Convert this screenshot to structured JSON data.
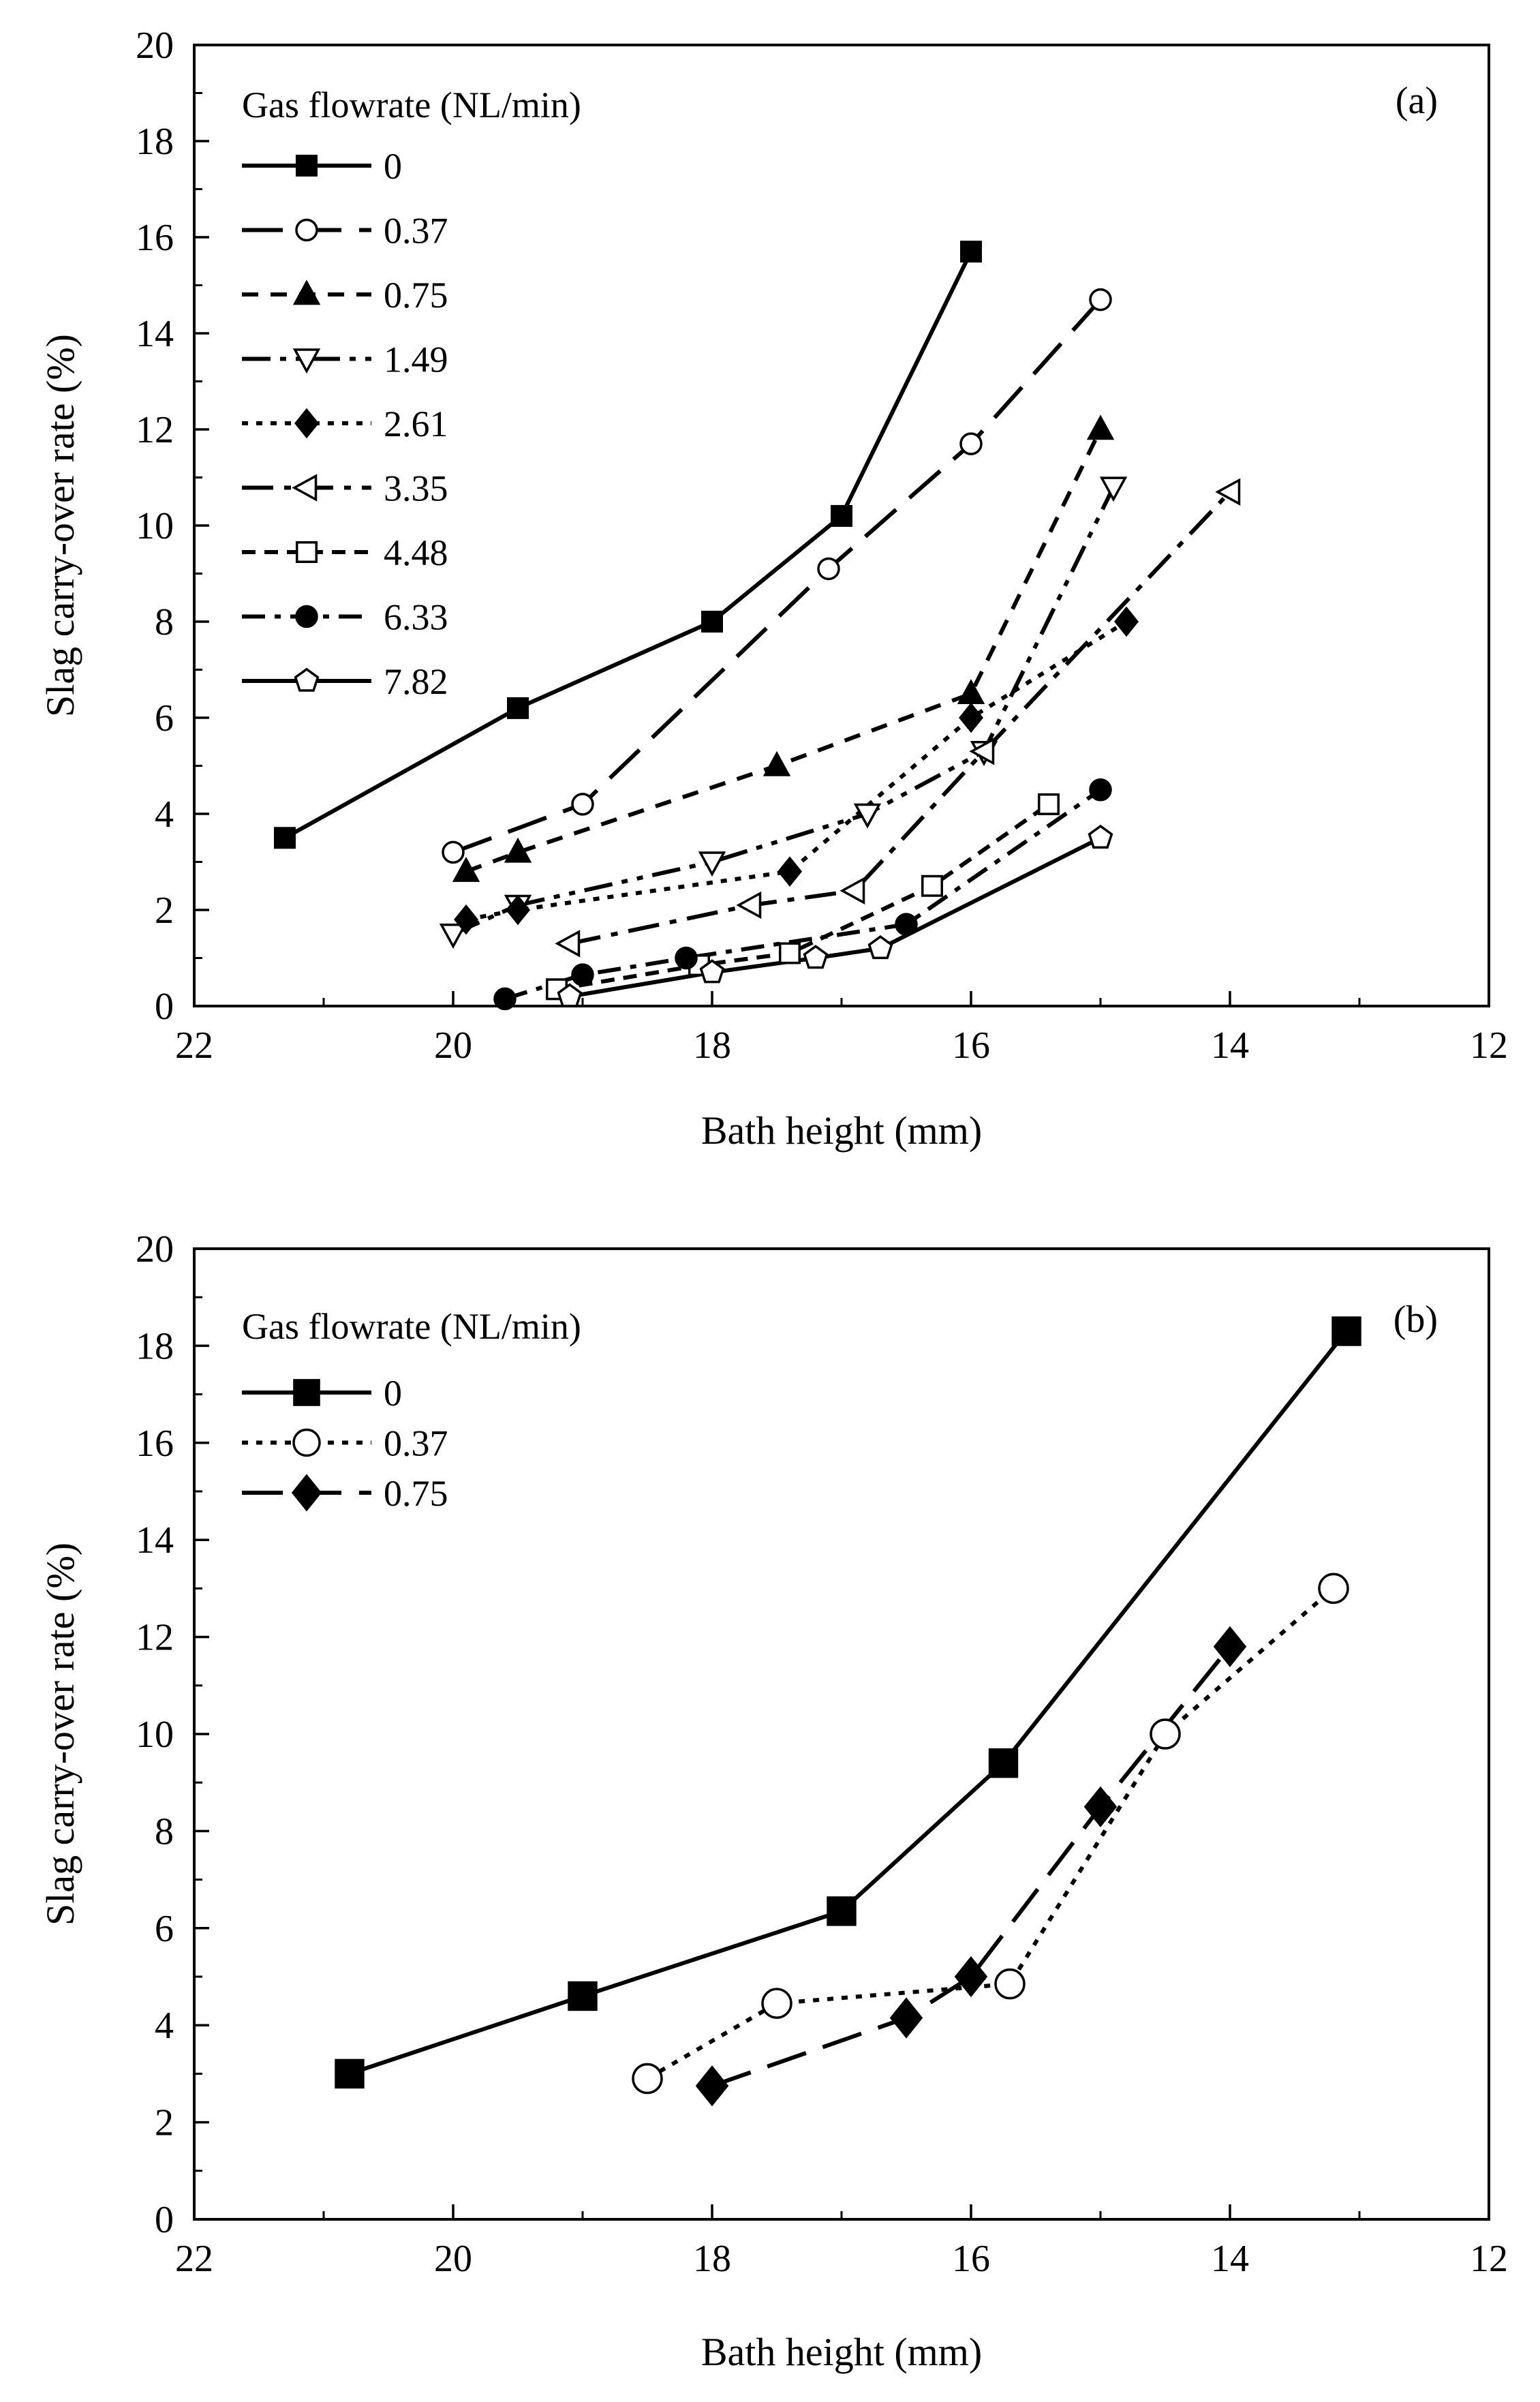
{
  "chart_data": [
    {
      "type": "line",
      "panel_label": "(a)",
      "xlabel": "Bath height (mm)",
      "ylabel": "Slag carry-over rate (%)",
      "xlim": [
        22,
        12
      ],
      "ylim": [
        0,
        20
      ],
      "x_ticks": [
        "22",
        "20",
        "18",
        "16",
        "14",
        "12"
      ],
      "y_ticks": [
        "0",
        "2",
        "4",
        "6",
        "8",
        "10",
        "12",
        "14",
        "16",
        "18",
        "20"
      ],
      "legend_title": "Gas flowrate (NL/min)",
      "legend_position": "top-left",
      "series": [
        {
          "name": "0",
          "marker": "square",
          "filled": true,
          "dash": "solid",
          "x": [
            21.3,
            19.5,
            18.0,
            17.0,
            16.0
          ],
          "y": [
            3.5,
            6.2,
            8.0,
            10.2,
            15.7
          ]
        },
        {
          "name": "0.37",
          "marker": "circle",
          "filled": false,
          "dash": "longdash",
          "x": [
            20.0,
            19.0,
            17.1,
            16.0,
            15.0
          ],
          "y": [
            3.2,
            4.2,
            9.1,
            11.7,
            14.7
          ]
        },
        {
          "name": "0.75",
          "marker": "triangle-up",
          "filled": true,
          "dash": "dashed",
          "x": [
            19.9,
            19.5,
            17.5,
            16.0,
            15.0
          ],
          "y": [
            2.8,
            3.2,
            5.0,
            6.5,
            12.0
          ]
        },
        {
          "name": "1.49",
          "marker": "triangle-down",
          "filled": false,
          "dash": "dashdotdot",
          "x": [
            20.0,
            19.5,
            18.0,
            16.8,
            15.9,
            14.9
          ],
          "y": [
            1.5,
            2.1,
            3.0,
            4.0,
            5.3,
            10.8
          ]
        },
        {
          "name": "2.61",
          "marker": "diamond",
          "filled": true,
          "dash": "dotted",
          "x": [
            19.9,
            19.5,
            17.4,
            16.0,
            14.8
          ],
          "y": [
            1.8,
            2.0,
            2.8,
            6.0,
            8.0
          ]
        },
        {
          "name": "3.35",
          "marker": "triangle-left",
          "filled": false,
          "dash": "dashdot",
          "x": [
            19.1,
            17.7,
            16.9,
            15.9,
            14.0
          ],
          "y": [
            1.3,
            2.1,
            2.4,
            5.3,
            10.7
          ]
        },
        {
          "name": "4.48",
          "marker": "square",
          "filled": false,
          "dash": "shortdash",
          "x": [
            19.2,
            18.1,
            17.4,
            16.3,
            15.4
          ],
          "y": [
            0.35,
            0.85,
            1.1,
            2.5,
            4.2
          ]
        },
        {
          "name": "6.33",
          "marker": "circle",
          "filled": true,
          "dash": "dashdot2",
          "x": [
            19.6,
            19.0,
            18.2,
            16.5,
            15.0
          ],
          "y": [
            0.15,
            0.65,
            1.0,
            1.7,
            4.5
          ]
        },
        {
          "name": "7.82",
          "marker": "pentagon",
          "filled": false,
          "dash": "solid",
          "x": [
            19.1,
            18.0,
            17.2,
            16.7,
            15.0
          ],
          "y": [
            0.2,
            0.7,
            1.0,
            1.2,
            3.5
          ]
        }
      ]
    },
    {
      "type": "line",
      "panel_label": "(b)",
      "xlabel": "Bath height (mm)",
      "ylabel": "Slag carry-over rate (%)",
      "xlim": [
        22,
        12
      ],
      "ylim": [
        0,
        20
      ],
      "x_ticks": [
        "22",
        "20",
        "18",
        "16",
        "14",
        "12"
      ],
      "y_ticks": [
        "0",
        "2",
        "4",
        "6",
        "8",
        "10",
        "12",
        "14",
        "16",
        "18",
        "20"
      ],
      "legend_title": "Gas flowrate (NL/min)",
      "legend_position": "top-left",
      "series": [
        {
          "name": "0",
          "marker": "square",
          "filled": true,
          "dash": "solid",
          "x": [
            20.8,
            19.0,
            17.0,
            15.75,
            13.1
          ],
          "y": [
            3.0,
            4.6,
            6.35,
            9.4,
            18.3
          ]
        },
        {
          "name": "0.37",
          "marker": "circle",
          "filled": false,
          "dash": "dotted",
          "x": [
            18.5,
            17.5,
            15.7,
            14.5,
            13.2
          ],
          "y": [
            2.9,
            4.45,
            4.85,
            10.0,
            13.0
          ]
        },
        {
          "name": "0.75",
          "marker": "diamond",
          "filled": true,
          "dash": "longdash",
          "x": [
            18.0,
            16.5,
            16.0,
            15.0,
            14.0
          ],
          "y": [
            2.75,
            4.15,
            5.0,
            8.5,
            11.8
          ]
        }
      ]
    }
  ]
}
